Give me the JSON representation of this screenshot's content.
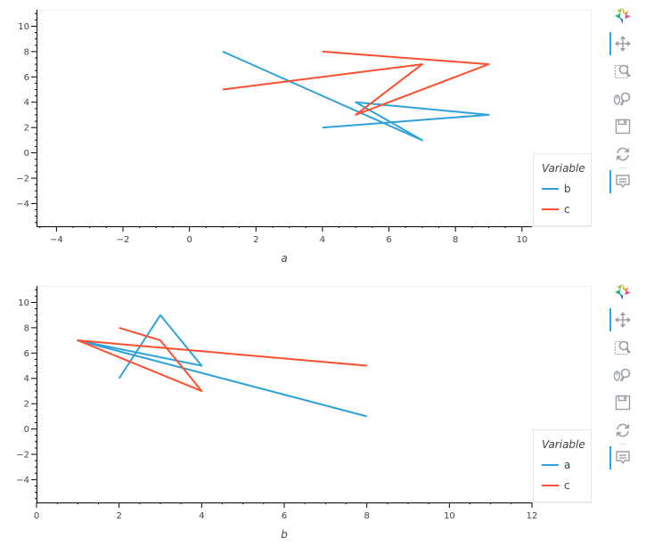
{
  "chart_data": [
    {
      "type": "line",
      "xlabel": "a",
      "xlim": [
        -4.6,
        10.3
      ],
      "ylim": [
        -5.8,
        11.3
      ],
      "xticks": [
        -4,
        -2,
        0,
        2,
        4,
        6,
        8,
        10
      ],
      "yticks": [
        -4,
        -2,
        0,
        2,
        4,
        6,
        8,
        10
      ],
      "legend_title": "Variable",
      "legend_position": "right",
      "grid": false,
      "series": [
        {
          "name": "b",
          "color": "#30a2da",
          "points": [
            [
              1,
              8
            ],
            [
              7,
              1
            ],
            [
              5,
              4
            ],
            [
              9,
              3
            ],
            [
              4,
              2
            ]
          ]
        },
        {
          "name": "c",
          "color": "#fc4f30",
          "points": [
            [
              1,
              5
            ],
            [
              7,
              7
            ],
            [
              5,
              3
            ],
            [
              9,
              7
            ],
            [
              4,
              8
            ]
          ]
        }
      ]
    },
    {
      "type": "line",
      "xlabel": "b",
      "xlim": [
        0,
        12
      ],
      "ylim": [
        -5.8,
        11.3
      ],
      "xticks": [
        0,
        2,
        4,
        6,
        8,
        10,
        12
      ],
      "yticks": [
        -4,
        -2,
        0,
        2,
        4,
        6,
        8,
        10
      ],
      "legend_title": "Variable",
      "legend_position": "right",
      "grid": false,
      "series": [
        {
          "name": "a",
          "color": "#30a2da",
          "points": [
            [
              8,
              1
            ],
            [
              1,
              7
            ],
            [
              4,
              5
            ],
            [
              3,
              9
            ],
            [
              2,
              4
            ]
          ]
        },
        {
          "name": "c",
          "color": "#fc4f30",
          "points": [
            [
              8,
              5
            ],
            [
              1,
              7
            ],
            [
              4,
              3
            ],
            [
              3,
              7
            ],
            [
              2,
              8
            ]
          ]
        }
      ]
    }
  ],
  "toolbar": {
    "tools": [
      "bokeh-logo-icon",
      "pan-icon",
      "box-zoom-icon",
      "wheel-zoom-icon",
      "save-icon",
      "reset-icon",
      "hover-icon"
    ]
  }
}
